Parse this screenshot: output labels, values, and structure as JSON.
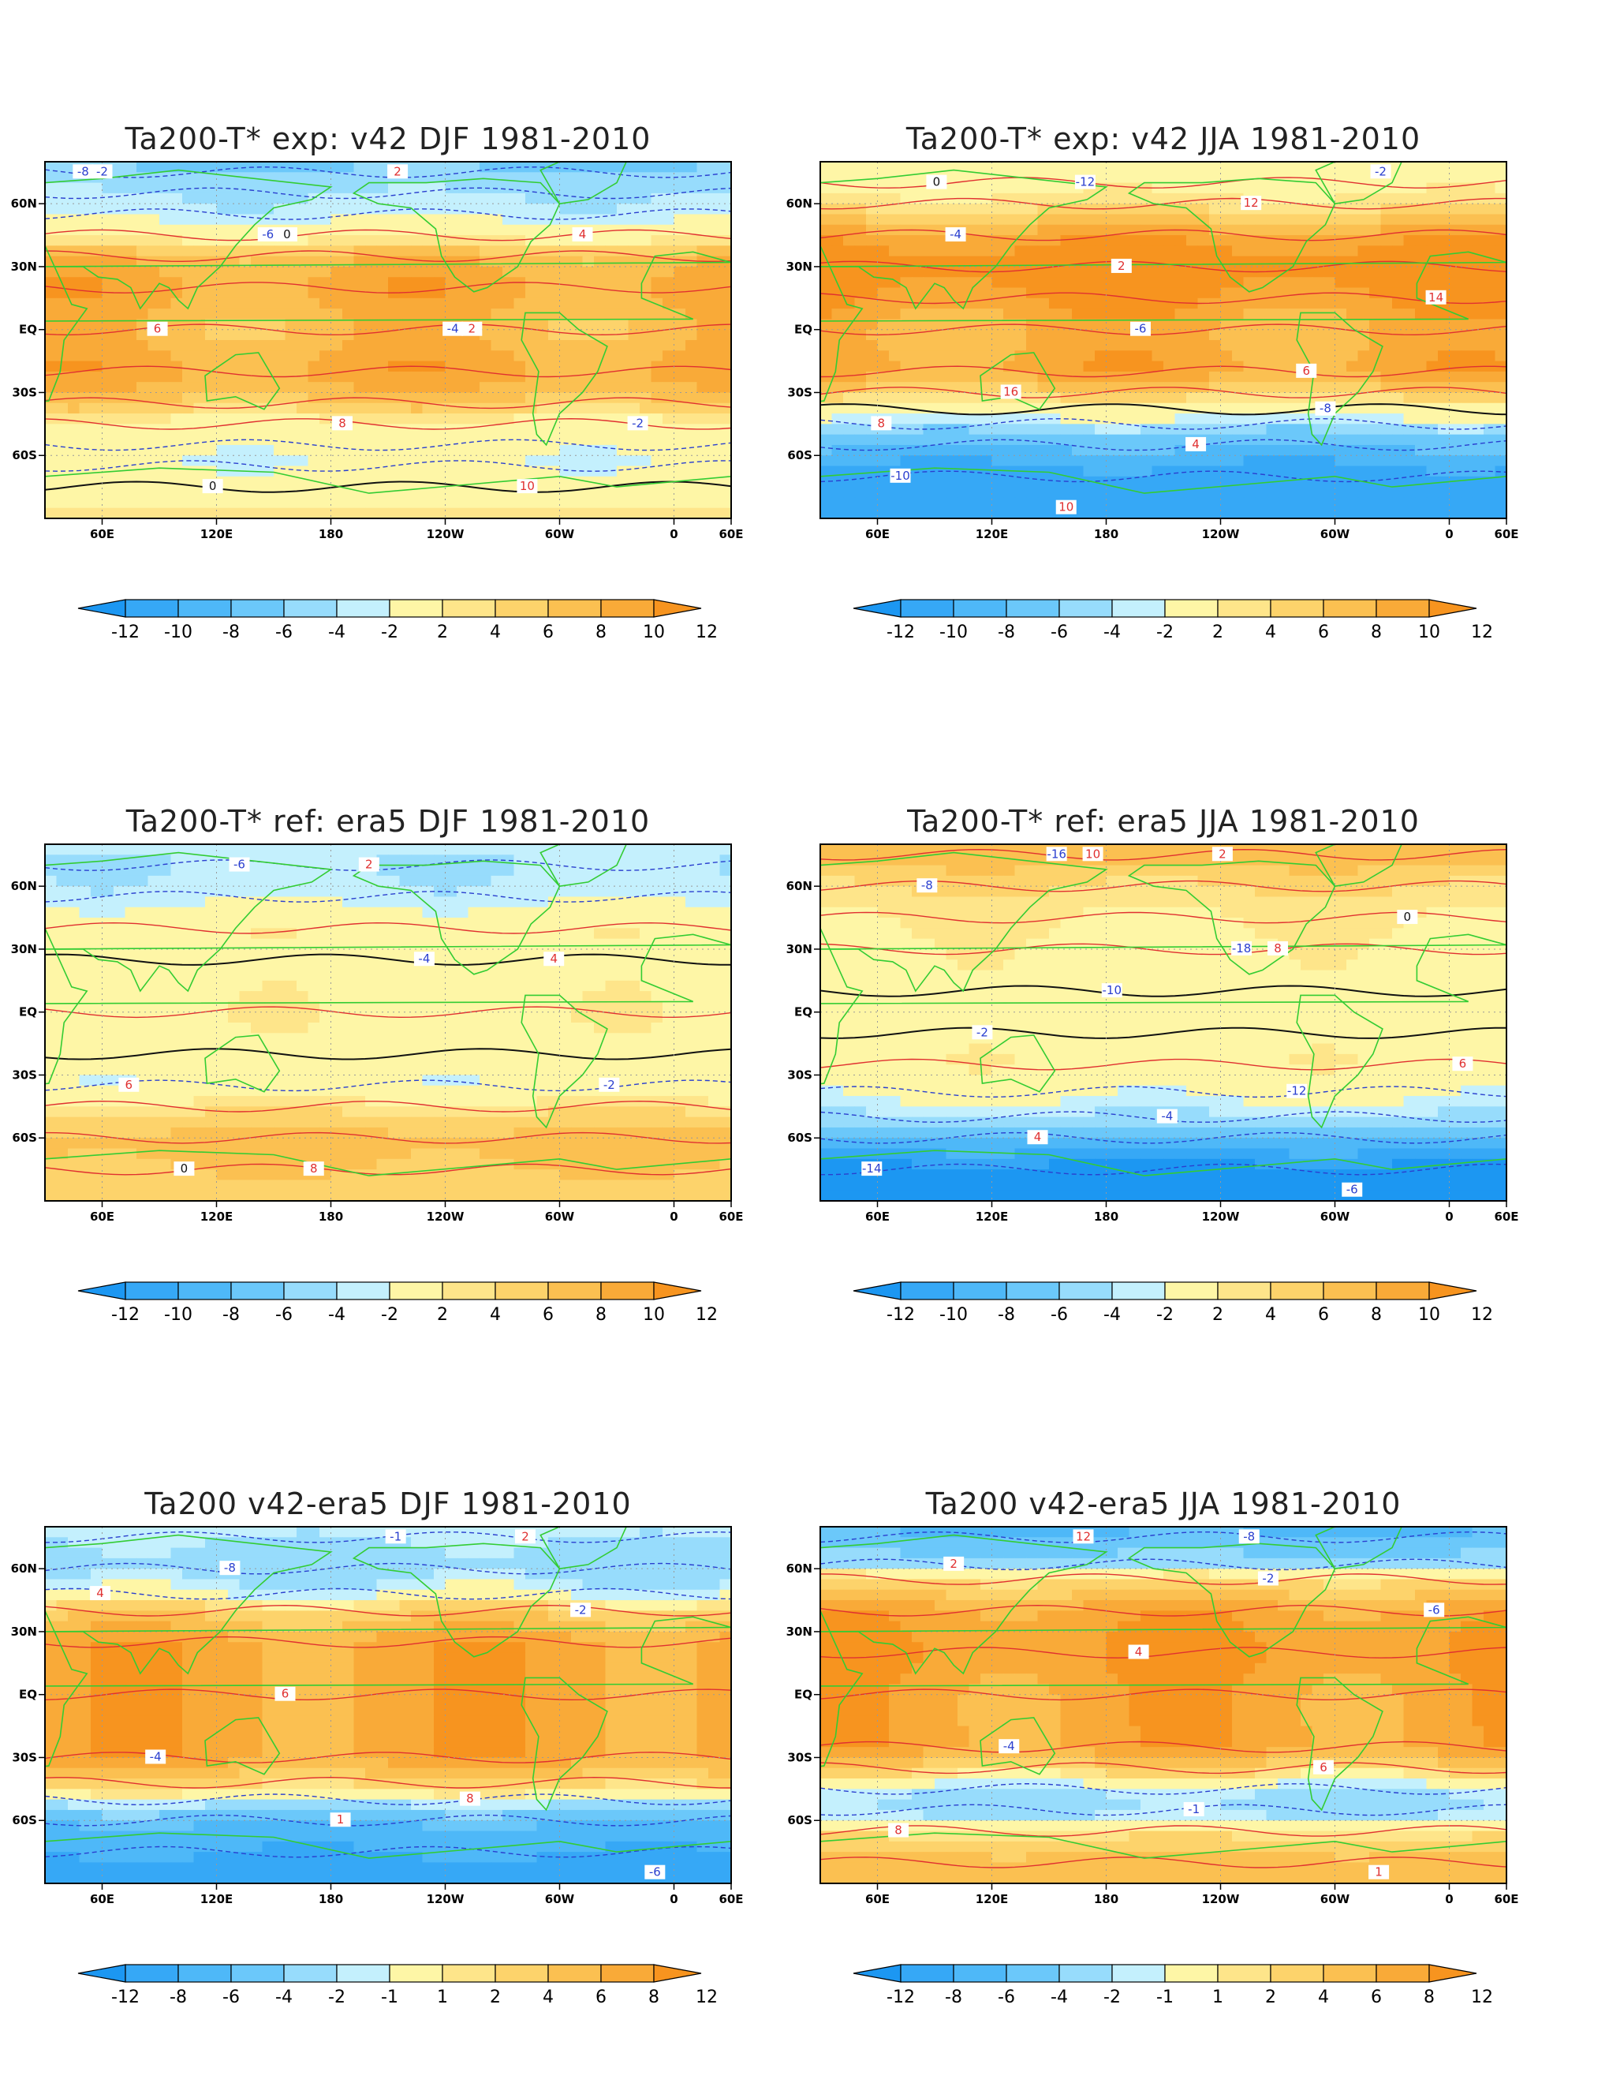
{
  "colors": {
    "neg": [
      "#1c97f2",
      "#36a8f6",
      "#4eb8f8",
      "#6bc8fa",
      "#97dcfc",
      "#c4f0fd"
    ],
    "white": "#ffffff",
    "pos": [
      "#fef6a6",
      "#fee58a",
      "#fdd36b",
      "#fbc051",
      "#f9aa38",
      "#f7941f"
    ],
    "land": "#33cc33",
    "pos_contour": "#e03030",
    "neg_contour": "#2a3fcf",
    "zero_contour": "#111111",
    "grid": "#999999"
  },
  "lon_ticks": [
    "60E",
    "120E",
    "180",
    "120W",
    "60W",
    "0",
    "60E"
  ],
  "lat_ticks": [
    "60N",
    "30N",
    "EQ",
    "30S",
    "60S"
  ],
  "chart_data": [
    {
      "type": "heatmap",
      "title": "Ta200-T*  exp: v42  DJF 1981-2010",
      "colorbar": [
        "-12",
        "-10",
        "-8",
        "-6",
        "-4",
        "-2",
        "2",
        "4",
        "6",
        "8",
        "10",
        "12"
      ],
      "lat_profile": [
        {
          "lat": 90,
          "v": -7
        },
        {
          "lat": 75,
          "v": -6
        },
        {
          "lat": 65,
          "v": -4
        },
        {
          "lat": 55,
          "v": -3
        },
        {
          "lat": 45,
          "v": 1
        },
        {
          "lat": 35,
          "v": 7
        },
        {
          "lat": 20,
          "v": 9
        },
        {
          "lat": 0,
          "v": 7
        },
        {
          "lat": -20,
          "v": 9
        },
        {
          "lat": -35,
          "v": 6
        },
        {
          "lat": -45,
          "v": 1
        },
        {
          "lat": -55,
          "v": -1
        },
        {
          "lat": -65,
          "v": -2
        },
        {
          "lat": -75,
          "v": 0
        },
        {
          "lat": -90,
          "v": 3
        }
      ],
      "contour_labels": [
        "-8",
        "-6",
        "-4",
        "-2",
        "0",
        "2",
        "4",
        "6",
        "8",
        "10",
        "-2",
        "0",
        "2"
      ]
    },
    {
      "type": "heatmap",
      "title": "Ta200-T*  exp: v42  JJA 1981-2010",
      "colorbar": [
        "-12",
        "-10",
        "-8",
        "-6",
        "-4",
        "-2",
        "2",
        "4",
        "6",
        "8",
        "10",
        "12"
      ],
      "lat_profile": [
        {
          "lat": 90,
          "v": 2
        },
        {
          "lat": 70,
          "v": 1
        },
        {
          "lat": 60,
          "v": 3
        },
        {
          "lat": 45,
          "v": 9
        },
        {
          "lat": 30,
          "v": 12
        },
        {
          "lat": 15,
          "v": 10
        },
        {
          "lat": 0,
          "v": 8
        },
        {
          "lat": -20,
          "v": 9
        },
        {
          "lat": -30,
          "v": 5
        },
        {
          "lat": -38,
          "v": 0
        },
        {
          "lat": -45,
          "v": -4
        },
        {
          "lat": -55,
          "v": -8
        },
        {
          "lat": -70,
          "v": -11
        },
        {
          "lat": -90,
          "v": -12
        }
      ],
      "contour_labels": [
        "0",
        "2",
        "6",
        "8",
        "10",
        "12",
        "14",
        "16",
        "4",
        "-2",
        "-4",
        "-6",
        "-8",
        "-10",
        "-12"
      ]
    },
    {
      "type": "heatmap",
      "title": "Ta200-T*  ref: era5  DJF 1981-2010",
      "colorbar": [
        "-12",
        "-10",
        "-8",
        "-6",
        "-4",
        "-2",
        "2",
        "4",
        "6",
        "8",
        "10",
        "12"
      ],
      "lat_profile": [
        {
          "lat": 90,
          "v": -3
        },
        {
          "lat": 70,
          "v": -4
        },
        {
          "lat": 55,
          "v": -3
        },
        {
          "lat": 40,
          "v": 1
        },
        {
          "lat": 25,
          "v": 0
        },
        {
          "lat": 0,
          "v": 1
        },
        {
          "lat": -20,
          "v": 0
        },
        {
          "lat": -35,
          "v": -1
        },
        {
          "lat": -45,
          "v": 3
        },
        {
          "lat": -60,
          "v": 7
        },
        {
          "lat": -75,
          "v": 6
        },
        {
          "lat": -90,
          "v": 5
        }
      ],
      "contour_labels": [
        "-6",
        "-4",
        "-2",
        "0",
        "2",
        "4",
        "6",
        "8"
      ]
    },
    {
      "type": "heatmap",
      "title": "Ta200-T*  ref: era5  JJA 1981-2010",
      "colorbar": [
        "-12",
        "-10",
        "-8",
        "-6",
        "-4",
        "-2",
        "2",
        "4",
        "6",
        "8",
        "10",
        "12"
      ],
      "lat_profile": [
        {
          "lat": 90,
          "v": 10
        },
        {
          "lat": 75,
          "v": 7
        },
        {
          "lat": 60,
          "v": 4
        },
        {
          "lat": 45,
          "v": 2
        },
        {
          "lat": 30,
          "v": 1
        },
        {
          "lat": 10,
          "v": 0
        },
        {
          "lat": -10,
          "v": 0
        },
        {
          "lat": -25,
          "v": 1
        },
        {
          "lat": -38,
          "v": -1
        },
        {
          "lat": -50,
          "v": -4
        },
        {
          "lat": -60,
          "v": -8
        },
        {
          "lat": -75,
          "v": -13
        },
        {
          "lat": -90,
          "v": -16
        }
      ],
      "contour_labels": [
        "10",
        "8",
        "6",
        "4",
        "2",
        "0",
        "-2",
        "-4",
        "-6",
        "-8",
        "-10",
        "-12",
        "-14",
        "-16",
        "-18"
      ]
    },
    {
      "type": "heatmap",
      "title": "Ta200  v42-era5  DJF 1981-2010",
      "colorbar": [
        "-12",
        "-8",
        "-6",
        "-4",
        "-2",
        "-1",
        "1",
        "2",
        "4",
        "6",
        "8",
        "12"
      ],
      "lat_profile": [
        {
          "lat": 90,
          "v": 0
        },
        {
          "lat": 75,
          "v": -2
        },
        {
          "lat": 60,
          "v": -3
        },
        {
          "lat": 48,
          "v": -1
        },
        {
          "lat": 40,
          "v": 3
        },
        {
          "lat": 25,
          "v": 7
        },
        {
          "lat": 0,
          "v": 7
        },
        {
          "lat": -30,
          "v": 7
        },
        {
          "lat": -42,
          "v": 3
        },
        {
          "lat": -50,
          "v": -1
        },
        {
          "lat": -60,
          "v": -6
        },
        {
          "lat": -75,
          "v": -8
        },
        {
          "lat": -90,
          "v": -9
        }
      ],
      "contour_labels": [
        "-1",
        "-2",
        "-4",
        "1",
        "2",
        "4",
        "6",
        "8",
        "-6",
        "-8"
      ]
    },
    {
      "type": "heatmap",
      "title": "Ta200  v42-era5  JJA 1981-2010",
      "colorbar": [
        "-12",
        "-8",
        "-6",
        "-4",
        "-2",
        "-1",
        "1",
        "2",
        "4",
        "6",
        "8",
        "12"
      ],
      "lat_profile": [
        {
          "lat": 90,
          "v": -7
        },
        {
          "lat": 75,
          "v": -6
        },
        {
          "lat": 62,
          "v": -3
        },
        {
          "lat": 55,
          "v": 2
        },
        {
          "lat": 40,
          "v": 7
        },
        {
          "lat": 20,
          "v": 8
        },
        {
          "lat": 0,
          "v": 7
        },
        {
          "lat": -25,
          "v": 7
        },
        {
          "lat": -35,
          "v": 3
        },
        {
          "lat": -45,
          "v": -2
        },
        {
          "lat": -55,
          "v": -3
        },
        {
          "lat": -65,
          "v": 1
        },
        {
          "lat": -80,
          "v": 5
        },
        {
          "lat": -90,
          "v": 6
        }
      ],
      "contour_labels": [
        "-8",
        "-6",
        "-4",
        "-1",
        "1",
        "2",
        "4",
        "6",
        "8",
        "12",
        "-2"
      ]
    }
  ]
}
